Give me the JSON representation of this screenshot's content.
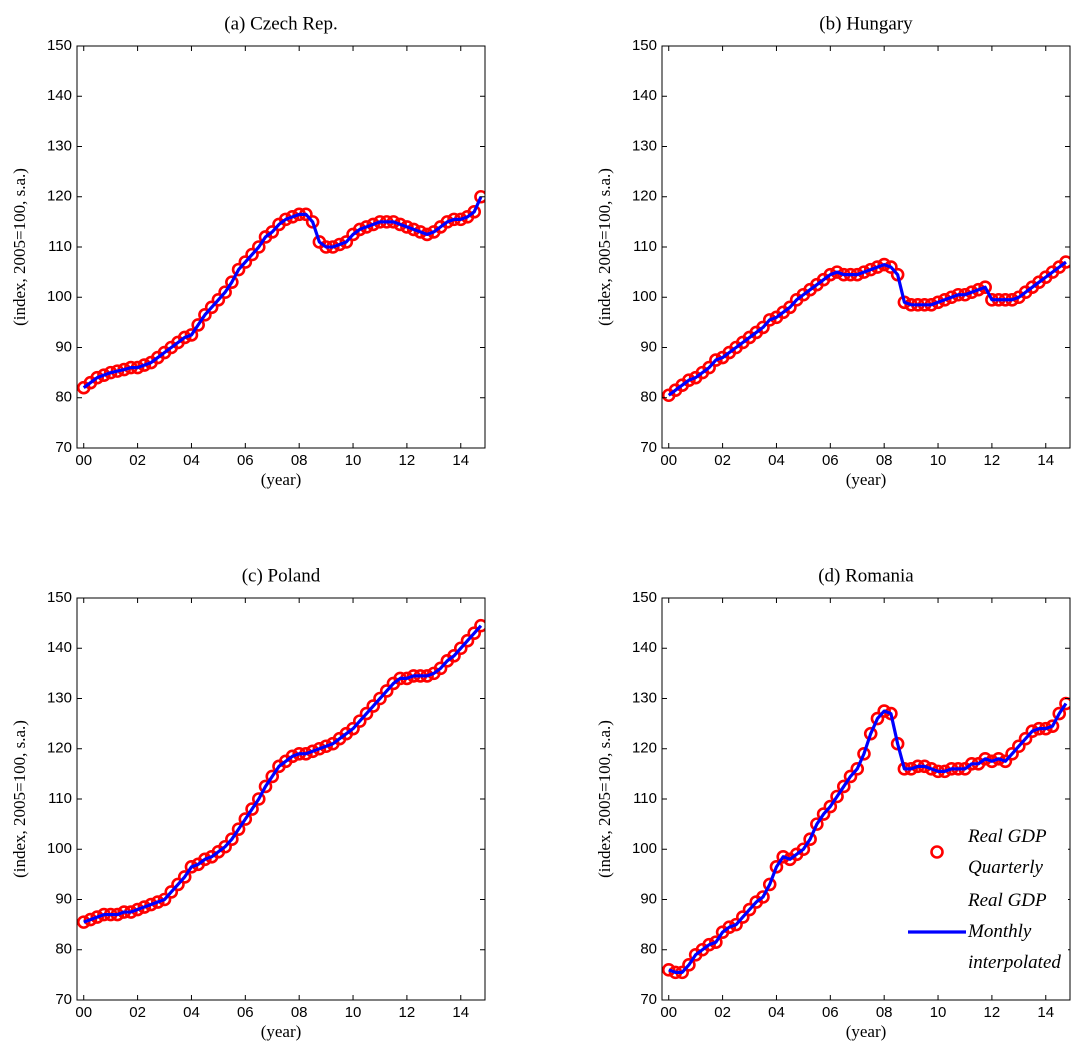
{
  "chart_data": [
    {
      "type": "line",
      "title": "(a) Czech Rep.",
      "xlabel": "(year)",
      "ylabel": "(index, 2005=100, s.a.)",
      "x": [
        0,
        0.25,
        0.5,
        0.75,
        1,
        1.25,
        1.5,
        1.75,
        2,
        2.25,
        2.5,
        2.75,
        3,
        3.25,
        3.5,
        3.75,
        4,
        4.25,
        4.5,
        4.75,
        5,
        5.25,
        5.5,
        5.75,
        6,
        6.25,
        6.5,
        6.75,
        7,
        7.25,
        7.5,
        7.75,
        8,
        8.25,
        8.5,
        8.75,
        9,
        9.25,
        9.5,
        9.75,
        10,
        10.25,
        10.5,
        10.75,
        11,
        11.25,
        11.5,
        11.75,
        12,
        12.25,
        12.5,
        12.75,
        13,
        13.25,
        13.5,
        13.75,
        14,
        14.25,
        14.5,
        14.75
      ],
      "xlim": [
        -0.25,
        14.9
      ],
      "xticks": [
        {
          "value": 0,
          "label": "00"
        },
        {
          "value": 2,
          "label": "02"
        },
        {
          "value": 4,
          "label": "04"
        },
        {
          "value": 6,
          "label": "06"
        },
        {
          "value": 8,
          "label": "08"
        },
        {
          "value": 10,
          "label": "10"
        },
        {
          "value": 12,
          "label": "12"
        },
        {
          "value": 14,
          "label": "14"
        }
      ],
      "ylim": [
        70,
        150
      ],
      "yticks": [
        70,
        80,
        90,
        100,
        110,
        120,
        130,
        140,
        150
      ],
      "series": [
        {
          "color": "#ff0000",
          "style": "markers",
          "values": [
            82,
            83,
            84,
            84.5,
            85,
            85.3,
            85.6,
            86,
            86,
            86.5,
            87,
            88,
            89,
            90,
            91,
            92,
            92.5,
            94.5,
            96.5,
            98,
            99.5,
            101,
            103,
            105.5,
            107,
            108.5,
            110,
            112,
            113,
            114.5,
            115.5,
            116,
            116.5,
            116.5,
            115,
            111,
            110,
            110,
            110.5,
            111,
            112.5,
            113.5,
            114,
            114.5,
            115,
            115,
            115,
            114.5,
            114,
            113.5,
            113,
            112.5,
            113,
            114,
            115,
            115.5,
            115.5,
            116,
            117,
            120
          ]
        },
        {
          "color": "#0000ff",
          "style": "line",
          "values": [
            82,
            83,
            84,
            84.5,
            85,
            85.3,
            85.6,
            86,
            86,
            86.5,
            87,
            88,
            89,
            90,
            91,
            92,
            92.5,
            94.5,
            96.5,
            98,
            99.5,
            101,
            103,
            105.5,
            107,
            108.5,
            110,
            112,
            113,
            114.5,
            115.5,
            116,
            116.5,
            116.5,
            115,
            111,
            110,
            110,
            110.5,
            111,
            112.5,
            113.5,
            114,
            114.5,
            115,
            115,
            115,
            114.5,
            114,
            113.5,
            113,
            112.5,
            113,
            114,
            115,
            115.5,
            115.5,
            116,
            117,
            120
          ]
        }
      ]
    },
    {
      "type": "line",
      "title": "(b) Hungary",
      "xlabel": "(year)",
      "ylabel": "(index, 2005=100, s.a.)",
      "x": [
        0,
        0.25,
        0.5,
        0.75,
        1,
        1.25,
        1.5,
        1.75,
        2,
        2.25,
        2.5,
        2.75,
        3,
        3.25,
        3.5,
        3.75,
        4,
        4.25,
        4.5,
        4.75,
        5,
        5.25,
        5.5,
        5.75,
        6,
        6.25,
        6.5,
        6.75,
        7,
        7.25,
        7.5,
        7.75,
        8,
        8.25,
        8.5,
        8.75,
        9,
        9.25,
        9.5,
        9.75,
        10,
        10.25,
        10.5,
        10.75,
        11,
        11.25,
        11.5,
        11.75,
        12,
        12.25,
        12.5,
        12.75,
        13,
        13.25,
        13.5,
        13.75,
        14,
        14.25,
        14.5,
        14.75
      ],
      "xlim": [
        -0.25,
        14.9
      ],
      "xticks": [
        {
          "value": 0,
          "label": "00"
        },
        {
          "value": 2,
          "label": "02"
        },
        {
          "value": 4,
          "label": "04"
        },
        {
          "value": 6,
          "label": "06"
        },
        {
          "value": 8,
          "label": "08"
        },
        {
          "value": 10,
          "label": "10"
        },
        {
          "value": 12,
          "label": "12"
        },
        {
          "value": 14,
          "label": "14"
        }
      ],
      "ylim": [
        70,
        150
      ],
      "yticks": [
        70,
        80,
        90,
        100,
        110,
        120,
        130,
        140,
        150
      ],
      "series": [
        {
          "color": "#ff0000",
          "style": "markers",
          "values": [
            80.5,
            81.5,
            82.5,
            83.5,
            84,
            85,
            86,
            87.5,
            88,
            89,
            90,
            91,
            92,
            93,
            94,
            95.5,
            96,
            97,
            98,
            99.5,
            100.5,
            101.5,
            102.5,
            103.5,
            104.5,
            105,
            104.5,
            104.5,
            104.5,
            105,
            105.5,
            106,
            106.5,
            106,
            104.5,
            99,
            98.5,
            98.5,
            98.5,
            98.5,
            99,
            99.5,
            100,
            100.5,
            100.5,
            101,
            101.5,
            102,
            99.5,
            99.5,
            99.5,
            99.5,
            100,
            101,
            102,
            103,
            104,
            105,
            106,
            107
          ]
        },
        {
          "color": "#0000ff",
          "style": "line",
          "values": [
            80.5,
            81.5,
            82.5,
            83.5,
            84,
            85,
            86,
            87.5,
            88,
            89,
            90,
            91,
            92,
            93,
            94,
            95.5,
            96,
            97,
            98,
            99.5,
            100.5,
            101.5,
            102.5,
            103.5,
            104.5,
            105,
            104.5,
            104.5,
            104.5,
            105,
            105.5,
            106,
            106.5,
            106,
            104.5,
            99,
            98.5,
            98.5,
            98.5,
            98.5,
            99,
            99.5,
            100,
            100.5,
            100.5,
            101,
            101.5,
            102,
            99.5,
            99.5,
            99.5,
            99.5,
            100,
            101,
            102,
            103,
            104,
            105,
            106,
            107
          ]
        }
      ]
    },
    {
      "type": "line",
      "title": "(c) Poland",
      "xlabel": "(year)",
      "ylabel": "(index, 2005=100, s.a.)",
      "x": [
        0,
        0.25,
        0.5,
        0.75,
        1,
        1.25,
        1.5,
        1.75,
        2,
        2.25,
        2.5,
        2.75,
        3,
        3.25,
        3.5,
        3.75,
        4,
        4.25,
        4.5,
        4.75,
        5,
        5.25,
        5.5,
        5.75,
        6,
        6.25,
        6.5,
        6.75,
        7,
        7.25,
        7.5,
        7.75,
        8,
        8.25,
        8.5,
        8.75,
        9,
        9.25,
        9.5,
        9.75,
        10,
        10.25,
        10.5,
        10.75,
        11,
        11.25,
        11.5,
        11.75,
        12,
        12.25,
        12.5,
        12.75,
        13,
        13.25,
        13.5,
        13.75,
        14,
        14.25,
        14.5,
        14.75
      ],
      "xlim": [
        -0.25,
        14.9
      ],
      "xticks": [
        {
          "value": 0,
          "label": "00"
        },
        {
          "value": 2,
          "label": "02"
        },
        {
          "value": 4,
          "label": "04"
        },
        {
          "value": 6,
          "label": "06"
        },
        {
          "value": 8,
          "label": "08"
        },
        {
          "value": 10,
          "label": "10"
        },
        {
          "value": 12,
          "label": "12"
        },
        {
          "value": 14,
          "label": "14"
        }
      ],
      "ylim": [
        70,
        150
      ],
      "yticks": [
        70,
        80,
        90,
        100,
        110,
        120,
        130,
        140,
        150
      ],
      "series": [
        {
          "color": "#ff0000",
          "style": "markers",
          "values": [
            85.5,
            86,
            86.5,
            87,
            87,
            87,
            87.5,
            87.5,
            88,
            88.5,
            89,
            89.5,
            90,
            91.5,
            93,
            94.5,
            96.5,
            97,
            98,
            98.5,
            99.5,
            100.5,
            102,
            104,
            106,
            108,
            110,
            112.5,
            114.5,
            116.5,
            117.5,
            118.5,
            119,
            119,
            119.5,
            120,
            120.5,
            121,
            122,
            123,
            124,
            125.5,
            127,
            128.5,
            130,
            131.5,
            133,
            134,
            134,
            134.5,
            134.5,
            134.5,
            135,
            136,
            137.5,
            138.5,
            140,
            141.5,
            143,
            144.5
          ]
        },
        {
          "color": "#0000ff",
          "style": "line",
          "values": [
            85.5,
            86,
            86.5,
            87,
            87,
            87,
            87.5,
            87.5,
            88,
            88.5,
            89,
            89.5,
            90,
            91.5,
            93,
            94.5,
            96.5,
            97,
            98,
            98.5,
            99.5,
            100.5,
            102,
            104,
            106,
            108,
            110,
            112.5,
            114.5,
            116.5,
            117.5,
            118.5,
            119,
            119,
            119.5,
            120,
            120.5,
            121,
            122,
            123,
            124,
            125.5,
            127,
            128.5,
            130,
            131.5,
            133,
            134,
            134,
            134.5,
            134.5,
            134.5,
            135,
            136,
            137.5,
            138.5,
            140,
            141.5,
            143,
            144.5
          ]
        }
      ]
    },
    {
      "type": "line",
      "title": "(d) Romania",
      "xlabel": "(year)",
      "ylabel": "(index, 2005=100, s.a.)",
      "x": [
        0,
        0.25,
        0.5,
        0.75,
        1,
        1.25,
        1.5,
        1.75,
        2,
        2.25,
        2.5,
        2.75,
        3,
        3.25,
        3.5,
        3.75,
        4,
        4.25,
        4.5,
        4.75,
        5,
        5.25,
        5.5,
        5.75,
        6,
        6.25,
        6.5,
        6.75,
        7,
        7.25,
        7.5,
        7.75,
        8,
        8.25,
        8.5,
        8.75,
        9,
        9.25,
        9.5,
        9.75,
        10,
        10.25,
        10.5,
        10.75,
        11,
        11.25,
        11.5,
        11.75,
        12,
        12.25,
        12.5,
        12.75,
        13,
        13.25,
        13.5,
        13.75,
        14,
        14.25,
        14.5,
        14.75
      ],
      "xlim": [
        -0.25,
        14.9
      ],
      "xticks": [
        {
          "value": 0,
          "label": "00"
        },
        {
          "value": 2,
          "label": "02"
        },
        {
          "value": 4,
          "label": "04"
        },
        {
          "value": 6,
          "label": "06"
        },
        {
          "value": 8,
          "label": "08"
        },
        {
          "value": 10,
          "label": "10"
        },
        {
          "value": 12,
          "label": "12"
        },
        {
          "value": 14,
          "label": "14"
        }
      ],
      "ylim": [
        70,
        150
      ],
      "yticks": [
        70,
        80,
        90,
        100,
        110,
        120,
        130,
        140,
        150
      ],
      "legend": "lower right",
      "series": [
        {
          "name": "Real GDP Quarterly",
          "color": "#ff0000",
          "style": "markers",
          "values": [
            76,
            75.5,
            75.5,
            77,
            79,
            80,
            81,
            81.5,
            83.5,
            84.5,
            85,
            86.5,
            88,
            89.5,
            90.5,
            93,
            96.5,
            98.5,
            98,
            99,
            100,
            102,
            105,
            107,
            108.5,
            110.5,
            112.5,
            114.5,
            116,
            119,
            123,
            126,
            127.5,
            127,
            121,
            116,
            116,
            116.5,
            116.5,
            116,
            115.5,
            115.5,
            116,
            116,
            116,
            117,
            117,
            118,
            117.5,
            118,
            117.5,
            119,
            120.5,
            122,
            123.5,
            124,
            124,
            124.5,
            127,
            129
          ]
        },
        {
          "name": "Real GDP Monthly interpolated",
          "color": "#0000ff",
          "style": "line",
          "values": [
            76,
            75.5,
            75.5,
            77,
            79,
            80,
            81,
            81.5,
            83.5,
            84.5,
            85,
            86.5,
            88,
            89.5,
            90.5,
            93,
            96.5,
            98.5,
            98,
            99,
            100,
            102,
            105,
            107,
            108.5,
            110.5,
            112.5,
            114.5,
            116,
            119,
            123,
            126,
            127.5,
            127,
            121,
            116,
            116,
            116.5,
            116.5,
            116,
            115.5,
            115.5,
            116,
            116,
            116,
            117,
            117,
            118,
            117.5,
            118,
            117.5,
            119,
            120.5,
            122,
            123.5,
            124,
            124,
            124.5,
            127,
            129
          ]
        }
      ]
    }
  ]
}
